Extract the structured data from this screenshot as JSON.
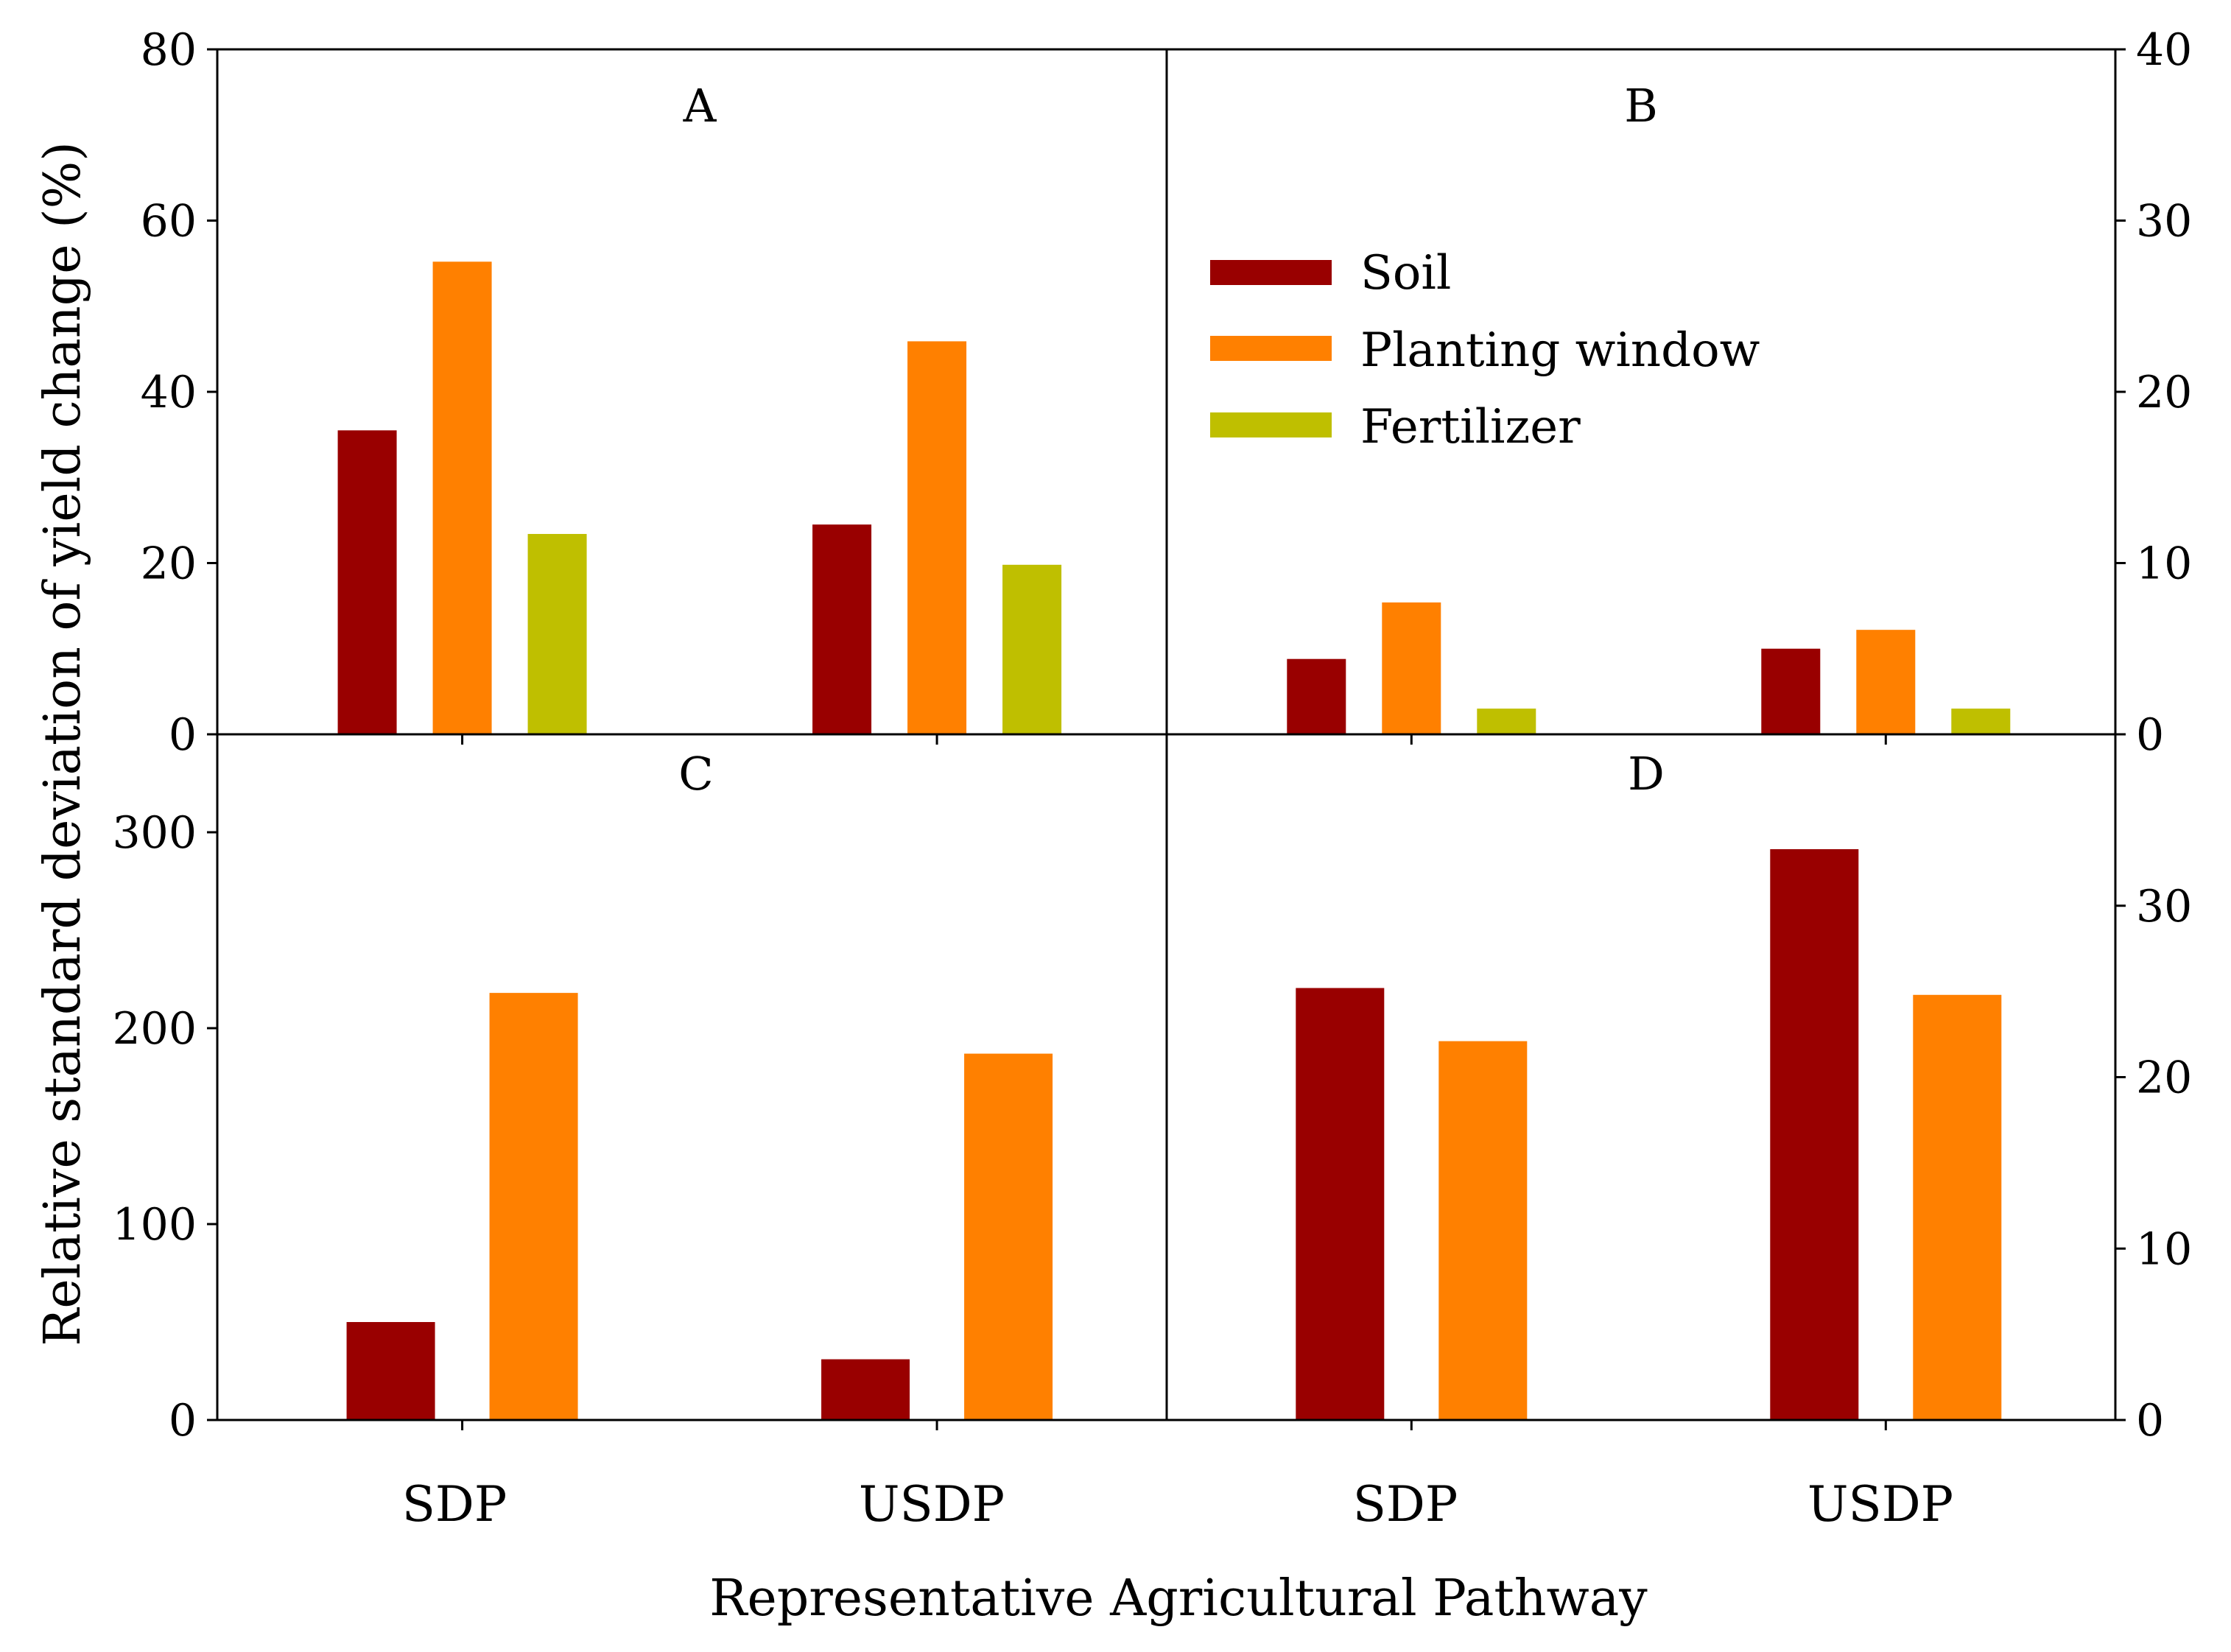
{
  "figure": {
    "ylabel": "Relative standard deviation of yield change (%)",
    "xlabel": "Representative Agricultural Pathway",
    "categories": [
      "SDP",
      "USDP"
    ],
    "legend": [
      {
        "name": "Soil",
        "color": "#990000"
      },
      {
        "name": "Planting window",
        "color": "#FF8000"
      },
      {
        "name": "Fertilizer",
        "color": "#BFBF00"
      }
    ]
  },
  "chart_data": [
    {
      "type": "bar",
      "panel": "A",
      "categories": [
        "SDP",
        "USDP"
      ],
      "ylim": [
        0,
        80
      ],
      "yticks": [
        0,
        20,
        40,
        60,
        80
      ],
      "axis_side": "left",
      "series": [
        {
          "name": "Soil",
          "color": "#990000",
          "values": [
            35.5,
            24.5
          ]
        },
        {
          "name": "Planting window",
          "color": "#FF8000",
          "values": [
            55.2,
            45.9
          ]
        },
        {
          "name": "Fertilizer",
          "color": "#BFBF00",
          "values": [
            23.4,
            19.8
          ]
        }
      ]
    },
    {
      "type": "bar",
      "panel": "B",
      "categories": [
        "SDP",
        "USDP"
      ],
      "ylim": [
        0,
        40
      ],
      "yticks": [
        0,
        10,
        20,
        30,
        40
      ],
      "axis_side": "right",
      "series": [
        {
          "name": "Soil",
          "color": "#990000",
          "values": [
            4.4,
            5.0
          ]
        },
        {
          "name": "Planting window",
          "color": "#FF8000",
          "values": [
            7.7,
            6.1
          ]
        },
        {
          "name": "Fertilizer",
          "color": "#BFBF00",
          "values": [
            1.5,
            1.5
          ]
        }
      ]
    },
    {
      "type": "bar",
      "panel": "C",
      "categories": [
        "SDP",
        "USDP"
      ],
      "ylim": [
        0,
        350
      ],
      "yticks": [
        0,
        100,
        200,
        300
      ],
      "axis_side": "left",
      "series": [
        {
          "name": "Soil",
          "color": "#990000",
          "values": [
            50,
            31
          ]
        },
        {
          "name": "Planting window",
          "color": "#FF8000",
          "values": [
            218,
            187
          ]
        }
      ]
    },
    {
      "type": "bar",
      "panel": "D",
      "categories": [
        "SDP",
        "USDP"
      ],
      "ylim": [
        0,
        40
      ],
      "yticks": [
        0,
        10,
        20,
        30
      ],
      "axis_side": "right",
      "series": [
        {
          "name": "Soil",
          "color": "#990000",
          "values": [
            25.2,
            33.3
          ]
        },
        {
          "name": "Planting window",
          "color": "#FF8000",
          "values": [
            22.1,
            24.8
          ]
        }
      ]
    }
  ]
}
